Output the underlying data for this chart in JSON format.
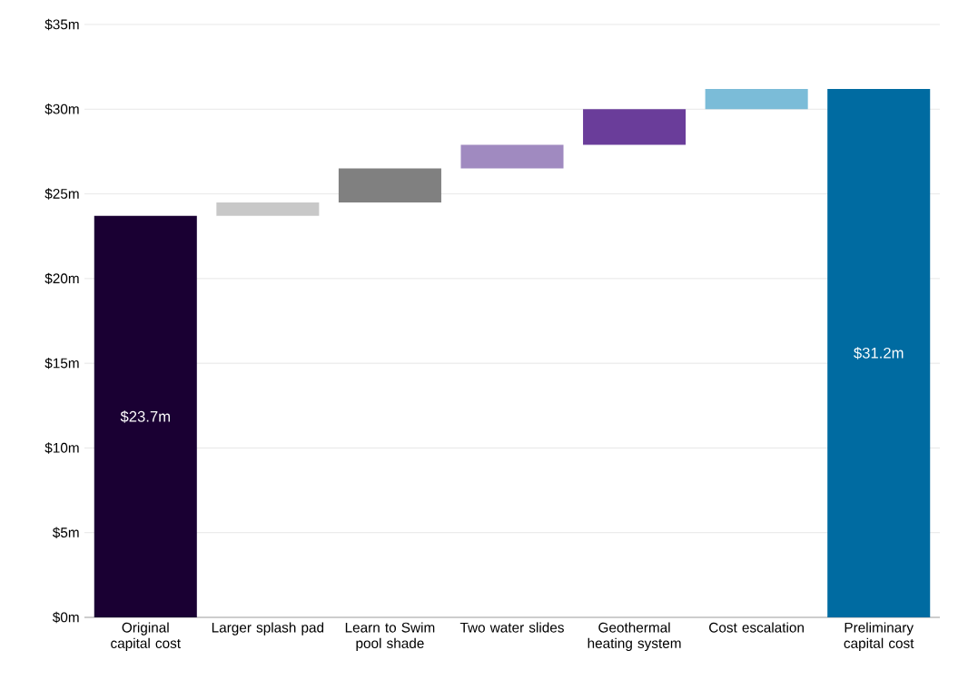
{
  "chart_data": {
    "type": "bar",
    "categories": [
      "Original capital cost",
      "Larger splash pad",
      "Learn to Swim pool shade",
      "Two water slides",
      "Geothermal heating system",
      "Cost escalation",
      "Preliminary capital cost"
    ],
    "base": [
      0,
      23.7,
      24.5,
      26.5,
      27.9,
      30.0,
      0
    ],
    "values": [
      23.7,
      0.8,
      2.0,
      1.4,
      2.1,
      1.2,
      31.2
    ],
    "value_labels": [
      "$23.7m",
      null,
      null,
      null,
      null,
      null,
      "$31.2m"
    ],
    "colors": [
      "#1a0033",
      "#c8c8c8",
      "#808080",
      "#a08ac0",
      "#6a3d9a",
      "#7bbcd8",
      "#006ba1"
    ],
    "ylim": [
      0,
      35
    ],
    "yticks": [
      {
        "value": 0,
        "label": "$0m"
      },
      {
        "value": 5,
        "label": "$5m"
      },
      {
        "value": 10,
        "label": "$10m"
      },
      {
        "value": 15,
        "label": "$15m"
      },
      {
        "value": 20,
        "label": "$20m"
      },
      {
        "value": 25,
        "label": "$25m"
      },
      {
        "value": 30,
        "label": "$30m"
      },
      {
        "value": 35,
        "label": "$35m"
      }
    ],
    "grid": "y"
  }
}
